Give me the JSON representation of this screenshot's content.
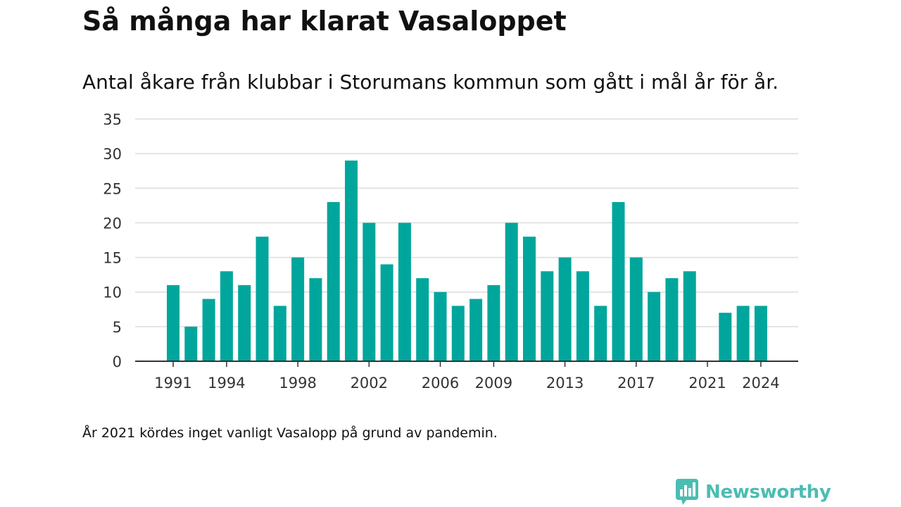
{
  "header": {
    "title": "Så många har klarat Vasaloppet",
    "subtitle": "Antal åkare från klubbar i Storumans kommun som gått i mål år för år."
  },
  "footnote": "År 2021 kördes inget vanligt Vasalopp på grund av pandemin.",
  "brand": {
    "name": "Newsworthy",
    "icon": "bar-chart-speech-bubble-icon",
    "color": "#4bbdb3"
  },
  "chart_data": {
    "type": "bar",
    "title": "Så många har klarat Vasaloppet",
    "subtitle": "Antal åkare från klubbar i Storumans kommun som gått i mål år för år.",
    "categories": [
      1991,
      1992,
      1993,
      1994,
      1995,
      1996,
      1997,
      1998,
      1999,
      2000,
      2001,
      2002,
      2003,
      2004,
      2005,
      2006,
      2007,
      2008,
      2009,
      2010,
      2011,
      2012,
      2013,
      2014,
      2015,
      2016,
      2017,
      2018,
      2019,
      2020,
      2021,
      2022,
      2023,
      2024
    ],
    "values": [
      11,
      5,
      9,
      13,
      11,
      18,
      8,
      15,
      12,
      23,
      29,
      20,
      14,
      20,
      12,
      10,
      8,
      9,
      11,
      20,
      18,
      13,
      15,
      13,
      8,
      23,
      15,
      10,
      12,
      13,
      null,
      7,
      8,
      8
    ],
    "x_tick_labels": [
      "1991",
      "1994",
      "1998",
      "2002",
      "2006",
      "2009",
      "2013",
      "2017",
      "2021",
      "2024"
    ],
    "y_ticks": [
      0,
      5,
      10,
      15,
      20,
      25,
      30,
      35
    ],
    "ylim": [
      0,
      35
    ],
    "xlabel": "",
    "ylabel": "",
    "bar_color": "#00a69c",
    "grid": true,
    "legend": "none"
  }
}
